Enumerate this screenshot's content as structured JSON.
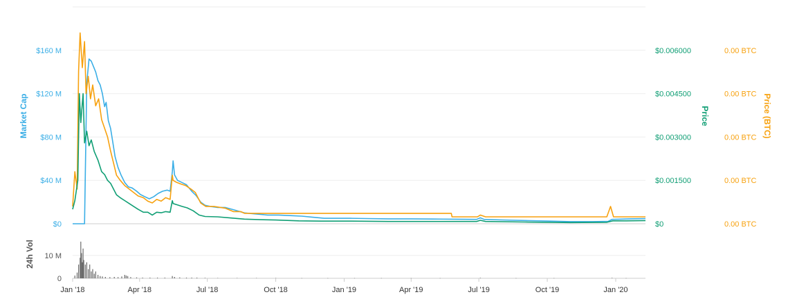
{
  "chart_data": {
    "type": "line",
    "colors": {
      "market_cap": "#3aaee6",
      "price": "#0f9e74",
      "price_btc": "#f7a10e",
      "volume": "#6b6b6b",
      "grid": "#eeeeee"
    },
    "x_ticks": [
      "Jan '18",
      "Apr '18",
      "Jul '18",
      "Oct '18",
      "Jan '19",
      "Apr '19",
      "Jul '19",
      "Oct '19",
      "Jan '20"
    ],
    "x_range": [
      "2018-01-01",
      "2020-02-10"
    ],
    "axes": {
      "market_cap": {
        "label": "Market Cap",
        "ticks": [
          "$0",
          "$40 M",
          "$80 M",
          "$120 M",
          "$160 M"
        ],
        "tick_values": [
          0,
          40,
          80,
          120,
          160
        ],
        "range": [
          0,
          200
        ]
      },
      "price": {
        "label": "Price",
        "ticks": [
          "$0",
          "$0.001500",
          "$0.003000",
          "$0.004500",
          "$0.006000"
        ],
        "tick_values": [
          0,
          0.0015,
          0.003,
          0.0045,
          0.006
        ],
        "range": [
          0,
          0.0075
        ]
      },
      "price_btc": {
        "label": "Price (BTC)",
        "ticks": [
          "0.00 BTC",
          "0.00 BTC",
          "0.00 BTC",
          "0.00 BTC",
          "0.00 BTC"
        ],
        "tick_values": [
          0,
          0.25,
          0.5,
          0.75,
          1.0
        ],
        "range": [
          0,
          1.25
        ]
      },
      "volume": {
        "label": "24h Vol",
        "ticks": [
          "0",
          "10 M"
        ],
        "tick_values": [
          0,
          10
        ],
        "range": [
          0,
          19
        ]
      }
    },
    "series": [
      {
        "key": "market_cap",
        "axis": "market_cap",
        "points": [
          [
            "2018-01-01",
            0
          ],
          [
            "2018-01-10",
            0
          ],
          [
            "2018-01-12",
            0
          ],
          [
            "2018-01-17",
            0
          ],
          [
            "2018-01-18",
            45
          ],
          [
            "2018-01-20",
            130
          ],
          [
            "2018-01-23",
            152
          ],
          [
            "2018-01-26",
            150
          ],
          [
            "2018-01-29",
            145
          ],
          [
            "2018-02-01",
            140
          ],
          [
            "2018-02-04",
            132
          ],
          [
            "2018-02-07",
            128
          ],
          [
            "2018-02-10",
            120
          ],
          [
            "2018-02-13",
            108
          ],
          [
            "2018-02-15",
            112
          ],
          [
            "2018-02-18",
            95
          ],
          [
            "2018-02-21",
            88
          ],
          [
            "2018-02-24",
            75
          ],
          [
            "2018-02-27",
            62
          ],
          [
            "2018-03-03",
            52
          ],
          [
            "2018-03-07",
            45
          ],
          [
            "2018-03-12",
            38
          ],
          [
            "2018-03-17",
            34
          ],
          [
            "2018-03-22",
            33
          ],
          [
            "2018-03-28",
            30
          ],
          [
            "2018-04-02",
            27
          ],
          [
            "2018-04-08",
            25
          ],
          [
            "2018-04-14",
            23
          ],
          [
            "2018-04-20",
            25
          ],
          [
            "2018-04-26",
            28
          ],
          [
            "2018-05-02",
            30
          ],
          [
            "2018-05-08",
            31
          ],
          [
            "2018-05-12",
            30
          ],
          [
            "2018-05-15",
            48
          ],
          [
            "2018-05-16",
            58
          ],
          [
            "2018-05-18",
            45
          ],
          [
            "2018-05-22",
            40
          ],
          [
            "2018-05-28",
            38
          ],
          [
            "2018-06-03",
            36
          ],
          [
            "2018-06-10",
            30
          ],
          [
            "2018-06-16",
            26
          ],
          [
            "2018-06-22",
            20
          ],
          [
            "2018-06-28",
            17
          ],
          [
            "2018-07-05",
            16
          ],
          [
            "2018-07-15",
            15
          ],
          [
            "2018-07-25",
            15
          ],
          [
            "2018-08-05",
            13
          ],
          [
            "2018-08-20",
            10
          ],
          [
            "2018-09-05",
            9
          ],
          [
            "2018-09-20",
            8
          ],
          [
            "2018-10-05",
            8
          ],
          [
            "2018-10-20",
            7.5
          ],
          [
            "2018-11-05",
            7
          ],
          [
            "2018-11-20",
            6
          ],
          [
            "2018-12-05",
            5
          ],
          [
            "2018-12-20",
            5
          ],
          [
            "2019-01-10",
            5
          ],
          [
            "2019-02-01",
            4.8
          ],
          [
            "2019-03-01",
            4.5
          ],
          [
            "2019-04-01",
            4.5
          ],
          [
            "2019-05-01",
            4.3
          ],
          [
            "2019-06-01",
            4.2
          ],
          [
            "2019-06-28",
            4
          ],
          [
            "2019-07-03",
            5.5
          ],
          [
            "2019-07-08",
            4
          ],
          [
            "2019-08-01",
            3.5
          ],
          [
            "2019-09-01",
            3
          ],
          [
            "2019-10-01",
            2.5
          ],
          [
            "2019-11-01",
            2
          ],
          [
            "2019-12-01",
            2
          ],
          [
            "2019-12-22",
            2.2
          ],
          [
            "2019-12-27",
            4
          ],
          [
            "2020-01-05",
            4.2
          ],
          [
            "2020-01-20",
            4.5
          ],
          [
            "2020-02-10",
            4.8
          ]
        ]
      },
      {
        "key": "price_btc",
        "axis": "price_btc",
        "points": [
          [
            "2018-01-01",
            0.1
          ],
          [
            "2018-01-04",
            0.3
          ],
          [
            "2018-01-07",
            0.2
          ],
          [
            "2018-01-09",
            0.88
          ],
          [
            "2018-01-11",
            1.1
          ],
          [
            "2018-01-14",
            0.9
          ],
          [
            "2018-01-17",
            1.05
          ],
          [
            "2018-01-19",
            0.75
          ],
          [
            "2018-01-22",
            0.85
          ],
          [
            "2018-01-25",
            0.72
          ],
          [
            "2018-01-28",
            0.8
          ],
          [
            "2018-02-01",
            0.68
          ],
          [
            "2018-02-05",
            0.72
          ],
          [
            "2018-02-09",
            0.6
          ],
          [
            "2018-02-13",
            0.55
          ],
          [
            "2018-02-17",
            0.5
          ],
          [
            "2018-02-21",
            0.42
          ],
          [
            "2018-02-25",
            0.35
          ],
          [
            "2018-03-01",
            0.28
          ],
          [
            "2018-03-06",
            0.25
          ],
          [
            "2018-03-12",
            0.22
          ],
          [
            "2018-03-18",
            0.2
          ],
          [
            "2018-03-24",
            0.18
          ],
          [
            "2018-03-30",
            0.16
          ],
          [
            "2018-04-06",
            0.15
          ],
          [
            "2018-04-12",
            0.13
          ],
          [
            "2018-04-18",
            0.12
          ],
          [
            "2018-04-24",
            0.14
          ],
          [
            "2018-04-30",
            0.13
          ],
          [
            "2018-05-06",
            0.15
          ],
          [
            "2018-05-12",
            0.14
          ],
          [
            "2018-05-15",
            0.28
          ],
          [
            "2018-05-16",
            0.25
          ],
          [
            "2018-05-20",
            0.24
          ],
          [
            "2018-05-26",
            0.23
          ],
          [
            "2018-06-02",
            0.22
          ],
          [
            "2018-06-09",
            0.2
          ],
          [
            "2018-06-15",
            0.18
          ],
          [
            "2018-06-22",
            0.12
          ],
          [
            "2018-06-29",
            0.1
          ],
          [
            "2018-07-10",
            0.1
          ],
          [
            "2018-07-25",
            0.09
          ],
          [
            "2018-08-05",
            0.07
          ],
          [
            "2018-08-15",
            0.07
          ],
          [
            "2018-08-20",
            0.06
          ],
          [
            "2018-09-15",
            0.06
          ],
          [
            "2018-10-15",
            0.06
          ],
          [
            "2018-11-15",
            0.06
          ],
          [
            "2018-12-15",
            0.06
          ],
          [
            "2019-01-15",
            0.06
          ],
          [
            "2019-02-15",
            0.06
          ],
          [
            "2019-03-15",
            0.06
          ],
          [
            "2019-04-15",
            0.06
          ],
          [
            "2019-05-15",
            0.06
          ],
          [
            "2019-05-25",
            0.06
          ],
          [
            "2019-05-26",
            0.04
          ],
          [
            "2019-06-15",
            0.04
          ],
          [
            "2019-06-29",
            0.04
          ],
          [
            "2019-07-03",
            0.05
          ],
          [
            "2019-07-10",
            0.04
          ],
          [
            "2019-08-18",
            0.04
          ],
          [
            "2019-12-20",
            0.04
          ],
          [
            "2019-12-25",
            0.1
          ],
          [
            "2019-12-29",
            0.04
          ],
          [
            "2020-01-15",
            0.04
          ],
          [
            "2020-02-10",
            0.04
          ]
        ]
      },
      {
        "key": "price",
        "axis": "price",
        "points": [
          [
            "2018-01-01",
            0.0005
          ],
          [
            "2018-01-04",
            0.0008
          ],
          [
            "2018-01-08",
            0.0015
          ],
          [
            "2018-01-10",
            0.0045
          ],
          [
            "2018-01-12",
            0.0035
          ],
          [
            "2018-01-15",
            0.0045
          ],
          [
            "2018-01-17",
            0.0028
          ],
          [
            "2018-01-20",
            0.0032
          ],
          [
            "2018-01-23",
            0.0027
          ],
          [
            "2018-01-26",
            0.0029
          ],
          [
            "2018-01-30",
            0.0025
          ],
          [
            "2018-02-04",
            0.0022
          ],
          [
            "2018-02-09",
            0.0018
          ],
          [
            "2018-02-13",
            0.0017
          ],
          [
            "2018-02-17",
            0.0015
          ],
          [
            "2018-02-21",
            0.0014
          ],
          [
            "2018-02-25",
            0.0012
          ],
          [
            "2018-03-01",
            0.001
          ],
          [
            "2018-03-06",
            0.0009
          ],
          [
            "2018-03-12",
            0.0008
          ],
          [
            "2018-03-18",
            0.0007
          ],
          [
            "2018-03-24",
            0.0006
          ],
          [
            "2018-03-30",
            0.0005
          ],
          [
            "2018-04-06",
            0.0004
          ],
          [
            "2018-04-12",
            0.0004
          ],
          [
            "2018-04-18",
            0.0003
          ],
          [
            "2018-04-24",
            0.0004
          ],
          [
            "2018-04-30",
            0.00038
          ],
          [
            "2018-05-06",
            0.00042
          ],
          [
            "2018-05-12",
            0.0004
          ],
          [
            "2018-05-15",
            0.0008
          ],
          [
            "2018-05-16",
            0.0007
          ],
          [
            "2018-05-22",
            0.00065
          ],
          [
            "2018-05-28",
            0.0006
          ],
          [
            "2018-06-04",
            0.00055
          ],
          [
            "2018-06-12",
            0.00045
          ],
          [
            "2018-06-20",
            0.0003
          ],
          [
            "2018-06-28",
            0.00025
          ],
          [
            "2018-07-15",
            0.00024
          ],
          [
            "2018-08-01",
            0.0002
          ],
          [
            "2018-08-20",
            0.00016
          ],
          [
            "2018-09-10",
            0.00014
          ],
          [
            "2018-10-01",
            0.00013
          ],
          [
            "2018-11-01",
            0.0001
          ],
          [
            "2018-12-01",
            9e-05
          ],
          [
            "2019-01-10",
            9e-05
          ],
          [
            "2019-03-01",
            8e-05
          ],
          [
            "2019-05-01",
            8e-05
          ],
          [
            "2019-06-28",
            8e-05
          ],
          [
            "2019-07-03",
            0.00012
          ],
          [
            "2019-07-10",
            8e-05
          ],
          [
            "2019-09-01",
            6e-05
          ],
          [
            "2019-11-01",
            4e-05
          ],
          [
            "2019-12-20",
            5e-05
          ],
          [
            "2019-12-28",
            0.0001
          ],
          [
            "2020-01-15",
            0.0001
          ],
          [
            "2020-02-10",
            0.00011
          ]
        ]
      }
    ],
    "volume": [
      [
        "2018-01-04",
        1.2
      ],
      [
        "2018-01-07",
        2.5
      ],
      [
        "2018-01-09",
        6
      ],
      [
        "2018-01-11",
        9
      ],
      [
        "2018-01-12",
        16
      ],
      [
        "2018-01-13",
        11
      ],
      [
        "2018-01-14",
        7
      ],
      [
        "2018-01-15",
        13
      ],
      [
        "2018-01-16",
        8
      ],
      [
        "2018-01-18",
        6
      ],
      [
        "2018-01-20",
        7
      ],
      [
        "2018-01-22",
        4
      ],
      [
        "2018-01-24",
        6
      ],
      [
        "2018-01-26",
        3
      ],
      [
        "2018-01-28",
        4
      ],
      [
        "2018-01-30",
        2
      ],
      [
        "2018-02-01",
        3
      ],
      [
        "2018-02-04",
        1.5
      ],
      [
        "2018-02-07",
        1
      ],
      [
        "2018-02-10",
        0.8
      ],
      [
        "2018-02-14",
        0.6
      ],
      [
        "2018-02-20",
        0.5
      ],
      [
        "2018-02-26",
        0.6
      ],
      [
        "2018-03-03",
        0.5
      ],
      [
        "2018-03-08",
        0.8
      ],
      [
        "2018-03-12",
        1.5
      ],
      [
        "2018-03-14",
        1.2
      ],
      [
        "2018-03-16",
        1
      ],
      [
        "2018-03-20",
        0.5
      ],
      [
        "2018-03-28",
        0.4
      ],
      [
        "2018-04-05",
        0.3
      ],
      [
        "2018-04-15",
        0.3
      ],
      [
        "2018-04-25",
        0.3
      ],
      [
        "2018-05-05",
        0.3
      ],
      [
        "2018-05-15",
        1
      ],
      [
        "2018-05-18",
        0.6
      ],
      [
        "2018-05-25",
        0.4
      ],
      [
        "2018-06-03",
        0.3
      ],
      [
        "2018-06-10",
        0.3
      ],
      [
        "2018-06-17",
        0.3
      ],
      [
        "2018-06-28",
        0.2
      ],
      [
        "2018-07-15",
        0.15
      ],
      [
        "2018-08-10",
        0.15
      ],
      [
        "2018-09-05",
        0.15
      ],
      [
        "2018-10-01",
        0.15
      ],
      [
        "2018-11-05",
        0.1
      ],
      [
        "2018-12-10",
        0.1
      ],
      [
        "2019-01-15",
        0.1
      ],
      [
        "2019-02-20",
        0.1
      ],
      [
        "2019-04-01",
        0.1
      ],
      [
        "2019-05-10",
        0.1
      ],
      [
        "2019-07-03",
        0.2
      ],
      [
        "2019-08-20",
        0.1
      ],
      [
        "2019-10-10",
        0.1
      ],
      [
        "2019-12-27",
        0.2
      ],
      [
        "2020-01-15",
        0.1
      ]
    ]
  }
}
